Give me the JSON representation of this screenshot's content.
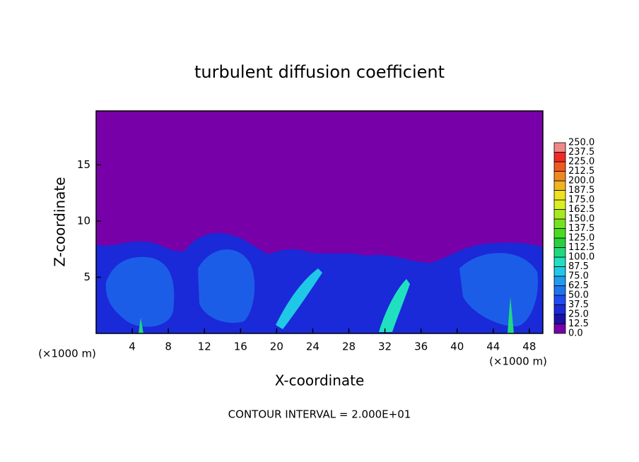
{
  "chart_data": {
    "type": "contour",
    "title": "turbulent diffusion coefficient",
    "x_label": "X-coordinate",
    "y_label": "Z-coordinate",
    "x_unit": "(×1000 m)",
    "annotation": "CONTOUR INTERVAL = 2.000E+01",
    "xlim": [
      0,
      49.5
    ],
    "ylim": [
      0,
      19.8
    ],
    "xticks": [
      4,
      8,
      12,
      16,
      20,
      24,
      28,
      32,
      36,
      40,
      44,
      48
    ],
    "yticks": [
      5,
      10,
      15
    ],
    "colorbar": {
      "levels": [
        {
          "value": 0,
          "label": "0.0"
        },
        {
          "value": 12.5,
          "label": "12.5"
        },
        {
          "value": 25,
          "label": "25.0"
        },
        {
          "value": 37.5,
          "label": "37.5"
        },
        {
          "value": 50,
          "label": "50.0"
        },
        {
          "value": 62.5,
          "label": "62.5"
        },
        {
          "value": 75,
          "label": "75.0"
        },
        {
          "value": 87.5,
          "label": "87.5"
        },
        {
          "value": 100,
          "label": "100.0"
        },
        {
          "value": 112.5,
          "label": "112.5"
        },
        {
          "value": 125,
          "label": "125.0"
        },
        {
          "value": 137.5,
          "label": "137.5"
        },
        {
          "value": 150,
          "label": "150.0"
        },
        {
          "value": 162.5,
          "label": "162.5"
        },
        {
          "value": 175,
          "label": "175.0"
        },
        {
          "value": 187.5,
          "label": "187.5"
        },
        {
          "value": 200,
          "label": "200.0"
        },
        {
          "value": 212.5,
          "label": "212.5"
        },
        {
          "value": 225,
          "label": "225.0"
        },
        {
          "value": 237.5,
          "label": "237.5"
        },
        {
          "value": 250,
          "label": "250.0"
        }
      ],
      "colors": [
        "#7800a8",
        "#1c10a8",
        "#1a2ad8",
        "#1e4cf0",
        "#1e74f0",
        "#1e9cf0",
        "#20c8e8",
        "#20e0c0",
        "#20d880",
        "#28d040",
        "#48dc20",
        "#78e020",
        "#a8e820",
        "#d8f020",
        "#f0e020",
        "#f0b420",
        "#f08820",
        "#f05820",
        "#f02828",
        "#f08888"
      ]
    }
  }
}
